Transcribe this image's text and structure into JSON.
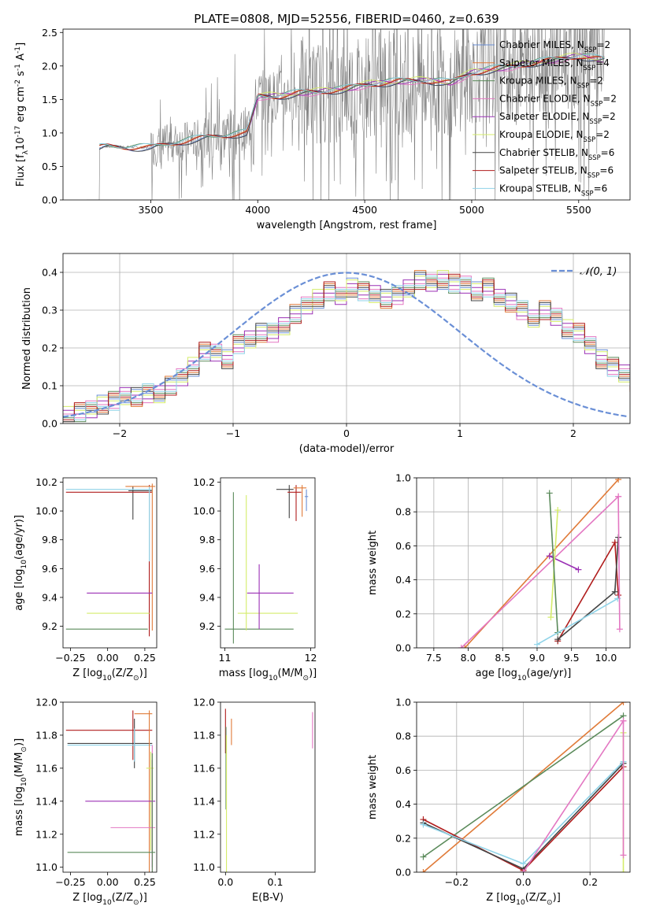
{
  "figure": {
    "title": "PLATE=0808, MJD=52556, FIBERID=0460, z=0.639"
  },
  "chart_data": [
    {
      "id": "spectrum",
      "type": "line",
      "xlabel": "wavelength [Angstrom, rest frame]",
      "ylabel": "Flux [f$_\\lambda$10$^{-17}$ erg cm$^{-2}$ s$^{-1}$ A$^{-1}$]",
      "xlim": [
        3090,
        5740
      ],
      "ylim": [
        0,
        2.55
      ],
      "xticks": [
        3500,
        4000,
        4500,
        5000,
        5500
      ],
      "yticks": [
        0.0,
        0.5,
        1.0,
        1.5,
        2.0,
        2.5
      ],
      "ytick_labels": [
        "0.0",
        "0.5",
        "1.0",
        "1.5",
        "2.0",
        "2.5"
      ],
      "grid": false,
      "legend_position": "upper-right",
      "series": [
        {
          "name": "Chabrier MILES, N",
          "sub": "SSP",
          "suffix": "=2",
          "color": "#6a8fd6"
        },
        {
          "name": "Salpeter MILES, N",
          "sub": "SSP",
          "suffix": "=4",
          "color": "#e07b39"
        },
        {
          "name": "Kroupa MILES, N",
          "sub": "SSP",
          "suffix": "=2",
          "color": "#5a8a5a"
        },
        {
          "name": "Chabrier ELODIE, N",
          "sub": "SSP",
          "suffix": "=2",
          "color": "#e377c2"
        },
        {
          "name": "Salpeter ELODIE, N",
          "sub": "SSP",
          "suffix": "=2",
          "color": "#9b30b5"
        },
        {
          "name": "Kroupa ELODIE, N",
          "sub": "SSP",
          "suffix": "=2",
          "color": "#d4ec6a"
        },
        {
          "name": "Chabrier STELIB, N",
          "sub": "SSP",
          "suffix": "=6",
          "color": "#444444"
        },
        {
          "name": "Salpeter STELIB, N",
          "sub": "SSP",
          "suffix": "=6",
          "color": "#b01c1c"
        },
        {
          "name": "Kroupa STELIB, N",
          "sub": "SSP",
          "suffix": "=6",
          "color": "#8fd3e8"
        }
      ],
      "data_color": "#808080",
      "model_x": [
        3260,
        3290,
        3500,
        3600,
        3700,
        3800,
        3950,
        4000,
        4100,
        4200,
        4300,
        4400,
        4500,
        4600,
        4700,
        4800,
        4900,
        5000,
        5100,
        5200,
        5300,
        5400,
        5500,
        5600
      ],
      "model_y": [
        0.78,
        0.8,
        0.78,
        0.85,
        0.9,
        0.95,
        1.0,
        1.55,
        1.55,
        1.6,
        1.62,
        1.65,
        1.72,
        1.75,
        1.78,
        1.78,
        1.75,
        1.9,
        1.95,
        2.0,
        2.05,
        2.1,
        2.15,
        2.1
      ]
    },
    {
      "id": "residuals",
      "type": "line",
      "xlabel": "(data-model)/error",
      "ylabel": "Normed distribution",
      "xlim": [
        -2.5,
        2.5
      ],
      "ylim": [
        0,
        0.45
      ],
      "xticks": [
        -2,
        -1,
        0,
        1,
        2
      ],
      "xtick_labels": [
        "−2",
        "−1",
        "0",
        "1",
        "2"
      ],
      "yticks": [
        0.0,
        0.1,
        0.2,
        0.3,
        0.4
      ],
      "ytick_labels": [
        "0.0",
        "0.1",
        "0.2",
        "0.3",
        "0.4"
      ],
      "grid": true,
      "legend_position": "upper-right",
      "legend": "𝒩(0, 1)",
      "gaussian": {
        "mean": 0,
        "sigma": 1,
        "color": "#6a8fd6"
      },
      "bin_edges_start": -2.5,
      "bin_width": 0.1,
      "histogram": [
        0.02,
        0.03,
        0.04,
        0.05,
        0.06,
        0.07,
        0.07,
        0.08,
        0.08,
        0.1,
        0.12,
        0.15,
        0.19,
        0.19,
        0.17,
        0.21,
        0.22,
        0.24,
        0.24,
        0.26,
        0.29,
        0.31,
        0.33,
        0.35,
        0.34,
        0.36,
        0.35,
        0.34,
        0.33,
        0.34,
        0.36,
        0.38,
        0.37,
        0.38,
        0.37,
        0.37,
        0.35,
        0.36,
        0.33,
        0.32,
        0.3,
        0.28,
        0.3,
        0.28,
        0.25,
        0.24,
        0.21,
        0.17,
        0.15,
        0.13,
        0.11
      ]
    },
    {
      "id": "age_vs_Z",
      "type": "scatter",
      "xlabel": "Z [log$_{10}$(Z/Z$_\\odot$)]",
      "ylabel": "age  [log$_{10}$(age/yr)]",
      "xlim": [
        -0.3,
        0.33
      ],
      "ylim": [
        9.05,
        10.23
      ],
      "xticks": [
        -0.25,
        0.0,
        0.25
      ],
      "xtick_labels": [
        "−0.25",
        "0.00",
        "0.25"
      ],
      "yticks": [
        9.2,
        9.4,
        9.6,
        9.8,
        10.0,
        10.2
      ],
      "ytick_labels": [
        "9.2",
        "9.4",
        "9.6",
        "9.8",
        "10.0",
        "10.2"
      ],
      "points": [
        {
          "x": 0.17,
          "y": 10.14,
          "xerr": [
            0.03,
            0.13
          ],
          "yerr": [
            0.2,
            0.03
          ],
          "c": 6
        },
        {
          "x": 0.28,
          "y": 10.13,
          "xerr": [
            0.56,
            0.02
          ],
          "yerr": [
            1.0,
            0.05
          ],
          "c": 7
        },
        {
          "x": 0.28,
          "y": 10.15,
          "xerr": [
            0.56,
            0.02
          ],
          "yerr": [
            0.5,
            0.02
          ],
          "c": 8
        },
        {
          "x": 0.3,
          "y": 10.17,
          "xerr": [
            0.18,
            0.02
          ],
          "yerr": [
            1.0,
            0.02
          ],
          "c": 1
        },
        {
          "x": 0.16,
          "y": 9.43,
          "xerr": [
            0.3,
            0.14
          ],
          "yerr": [
            0,
            0
          ],
          "c": 4
        },
        {
          "x": 0.0,
          "y": 9.29,
          "xerr": [
            0.14,
            0.28
          ],
          "yerr": [
            0,
            0
          ],
          "c": 5
        },
        {
          "x": 0.05,
          "y": 9.18,
          "xerr": [
            0.33,
            0.22
          ],
          "yerr": [
            0,
            0
          ],
          "c": 2
        }
      ]
    },
    {
      "id": "age_vs_mass",
      "type": "scatter",
      "xlabel": "mass [log$_{10}$(M/M$_\\odot$)]",
      "ylabel": "",
      "xlim": [
        10.95,
        12.05
      ],
      "ylim": [
        9.05,
        10.23
      ],
      "xticks": [
        11,
        12
      ],
      "xtick_labels": [
        "11",
        "12"
      ],
      "yticks": [
        9.2,
        9.4,
        9.6,
        9.8,
        10.0,
        10.2
      ],
      "ytick_labels": [
        "9.2",
        "9.4",
        "9.6",
        "9.8",
        "10.0",
        "10.2"
      ],
      "points": [
        {
          "x": 11.75,
          "y": 10.15,
          "xerr": [
            0.15,
            0.05
          ],
          "yerr": [
            0.2,
            0.03
          ],
          "c": 6
        },
        {
          "x": 11.83,
          "y": 10.13,
          "xerr": [
            0.1,
            0.06
          ],
          "yerr": [
            0.2,
            0.05
          ],
          "c": 7
        },
        {
          "x": 11.9,
          "y": 10.16,
          "xerr": [
            0.1,
            0.05
          ],
          "yerr": [
            0.2,
            0.02
          ],
          "c": 1
        },
        {
          "x": 11.95,
          "y": 10.1,
          "xerr": [
            0.02,
            0.02
          ],
          "yerr": [
            0.1,
            0.05
          ],
          "c": 0
        },
        {
          "x": 11.1,
          "y": 9.18,
          "xerr": [
            0.1,
            0.7
          ],
          "yerr": [
            0.1,
            0.95
          ],
          "c": 2
        },
        {
          "x": 11.25,
          "y": 9.29,
          "xerr": [
            0.1,
            0.6
          ],
          "yerr": [
            0.12,
            0.82
          ],
          "c": 5
        },
        {
          "x": 11.4,
          "y": 9.43,
          "xerr": [
            0.14,
            0.4
          ],
          "yerr": [
            0.25,
            0.2
          ],
          "c": 4
        }
      ]
    },
    {
      "id": "weight_vs_age",
      "type": "line",
      "xlabel": "age  [log$_{10}$(age/yr)]",
      "ylabel": "mass weight",
      "xlim": [
        7.25,
        10.35
      ],
      "ylim": [
        0,
        1
      ],
      "xticks": [
        7.5,
        8.0,
        8.5,
        9.0,
        9.5,
        10.0
      ],
      "xtick_labels": [
        "7.5",
        "8.0",
        "8.5",
        "9.0",
        "9.5",
        "10.0"
      ],
      "yticks": [
        0.0,
        0.2,
        0.4,
        0.6,
        0.8,
        1.0
      ],
      "ytick_labels": [
        "0.0",
        "0.2",
        "0.4",
        "0.6",
        "0.8",
        "1.0"
      ],
      "grid": true,
      "series": [
        {
          "c": 1,
          "x": [
            7.95,
            10.18
          ],
          "y": [
            0.0,
            0.99
          ]
        },
        {
          "c": 3,
          "x": [
            7.9,
            10.18
          ],
          "y": [
            0.0,
            0.89
          ]
        },
        {
          "c": 4,
          "x": [
            9.18,
            9.6
          ],
          "y": [
            0.54,
            0.46
          ]
        },
        {
          "c": 5,
          "x": [
            9.2,
            9.3
          ],
          "y": [
            0.18,
            0.81
          ]
        },
        {
          "c": 2,
          "x": [
            9.18,
            9.3
          ],
          "y": [
            0.91,
            0.09
          ]
        },
        {
          "c": 7,
          "x": [
            9.3,
            10.13,
            10.18
          ],
          "y": [
            0.04,
            0.62,
            0.31
          ]
        },
        {
          "c": 6,
          "x": [
            9.3,
            10.13,
            10.18
          ],
          "y": [
            0.05,
            0.33,
            0.65
          ]
        },
        {
          "c": 8,
          "x": [
            9.0,
            10.17
          ],
          "y": [
            0.02,
            0.29
          ]
        },
        {
          "c": 3,
          "x": [
            10.18,
            10.2
          ],
          "y": [
            0.89,
            0.11
          ]
        }
      ]
    },
    {
      "id": "mass_vs_Z",
      "type": "scatter",
      "xlabel": "Z [log$_{10}$(Z/Z$_\\odot$)]",
      "ylabel": "mass [log$_{10}$(M/M$_\\odot$)]",
      "xlim": [
        -0.3,
        0.33
      ],
      "ylim": [
        10.97,
        12.0
      ],
      "xticks": [
        -0.25,
        0.0,
        0.25
      ],
      "xtick_labels": [
        "−0.25",
        "0.00",
        "0.25"
      ],
      "yticks": [
        11.0,
        11.2,
        11.4,
        11.6,
        11.8,
        12.0
      ],
      "ytick_labels": [
        "11.0",
        "11.2",
        "11.4",
        "11.6",
        "11.8",
        "12.0"
      ],
      "points": [
        {
          "x": 0.17,
          "y": 11.83,
          "xerr": [
            0.45,
            0.13
          ],
          "yerr": [
            0.18,
            0.12
          ],
          "c": 7
        },
        {
          "x": 0.18,
          "y": 11.75,
          "xerr": [
            0.45,
            0.12
          ],
          "yerr": [
            0.15,
            0.15
          ],
          "c": 6
        },
        {
          "x": 0.18,
          "y": 11.74,
          "xerr": [
            0.45,
            0.12
          ],
          "yerr": [
            0.1,
            0.1
          ],
          "c": 8
        },
        {
          "x": 0.28,
          "y": 11.93,
          "xerr": [
            0.1,
            0.02
          ],
          "yerr": [
            1.0,
            0.02
          ],
          "c": 1
        },
        {
          "x": 0.29,
          "y": 11.6,
          "xerr": [
            0.03,
            0.02
          ],
          "yerr": [
            0.5,
            0.1
          ],
          "c": 5
        },
        {
          "x": 0.3,
          "y": 11.4,
          "xerr": [
            0.45,
            0.02
          ],
          "yerr": [
            0.4,
            0.25
          ],
          "c": 4
        },
        {
          "x": 0.3,
          "y": 11.24,
          "xerr": [
            0.28,
            0.02
          ],
          "yerr": [
            0.3,
            0.5
          ],
          "c": 3
        },
        {
          "x": 0.3,
          "y": 11.09,
          "xerr": [
            0.57,
            0.02
          ],
          "yerr": [
            0.2,
            0.6
          ],
          "c": 2
        }
      ]
    },
    {
      "id": "mass_vs_EBV",
      "type": "scatter",
      "xlabel": "E(B-V)",
      "ylabel": "",
      "xlim": [
        -0.01,
        0.18
      ],
      "ylim": [
        10.97,
        12.0
      ],
      "xticks": [
        0.0,
        0.1
      ],
      "xtick_labels": [
        "0.0",
        "0.1"
      ],
      "yticks": [
        11.0,
        11.2,
        11.4,
        11.6,
        11.8,
        12.0
      ],
      "ytick_labels": [
        "11.0",
        "11.2",
        "11.4",
        "11.6",
        "11.8",
        "12.0"
      ],
      "points": [
        {
          "x": 0.0,
          "y": 11.84,
          "xerr": [
            0,
            0
          ],
          "yerr": [
            0.15,
            0.12
          ],
          "c": 7
        },
        {
          "x": 0.001,
          "y": 11.75,
          "xerr": [
            0,
            0
          ],
          "yerr": [
            0.4,
            0.1
          ],
          "c": 2
        },
        {
          "x": 0.002,
          "y": 11.3,
          "xerr": [
            0,
            0
          ],
          "yerr": [
            0.4,
            0.5
          ],
          "c": 5
        },
        {
          "x": 0.012,
          "y": 11.82,
          "xerr": [
            0,
            0
          ],
          "yerr": [
            0.08,
            0.08
          ],
          "c": 1
        },
        {
          "x": 0.175,
          "y": 11.82,
          "xerr": [
            0,
            0
          ],
          "yerr": [
            0.1,
            0.12
          ],
          "c": 3
        }
      ]
    },
    {
      "id": "weight_vs_Z",
      "type": "line",
      "xlabel": "Z [log$_{10}$(Z/Z$_\\odot$)]",
      "ylabel": "mass weight",
      "xlim": [
        -0.32,
        0.32
      ],
      "ylim": [
        0,
        1
      ],
      "xticks": [
        -0.2,
        0.0,
        0.2
      ],
      "xtick_labels": [
        "−0.2",
        "0.0",
        "0.2"
      ],
      "yticks": [
        0.0,
        0.2,
        0.4,
        0.6,
        0.8,
        1.0
      ],
      "ytick_labels": [
        "0.0",
        "0.2",
        "0.4",
        "0.6",
        "0.8",
        "1.0"
      ],
      "grid": true,
      "series": [
        {
          "c": 1,
          "x": [
            -0.3,
            0.3
          ],
          "y": [
            0.0,
            1.0
          ]
        },
        {
          "c": 2,
          "x": [
            -0.3,
            0.3
          ],
          "y": [
            0.09,
            0.92
          ]
        },
        {
          "c": 7,
          "x": [
            -0.3,
            0.0,
            0.3
          ],
          "y": [
            0.31,
            0.01,
            0.62
          ]
        },
        {
          "c": 6,
          "x": [
            -0.3,
            0.0,
            0.3
          ],
          "y": [
            0.29,
            0.02,
            0.64
          ]
        },
        {
          "c": 8,
          "x": [
            -0.3,
            0.0,
            0.3
          ],
          "y": [
            0.28,
            0.05,
            0.65
          ]
        },
        {
          "c": 3,
          "x": [
            0.0,
            0.3
          ],
          "y": [
            0.0,
            0.89
          ]
        },
        {
          "c": 5,
          "x": [
            0.3,
            0.3
          ],
          "y": [
            0.0,
            0.82
          ]
        },
        {
          "c": 3,
          "x": [
            0.3,
            0.3
          ],
          "y": [
            0.89,
            0.1
          ]
        }
      ]
    }
  ]
}
